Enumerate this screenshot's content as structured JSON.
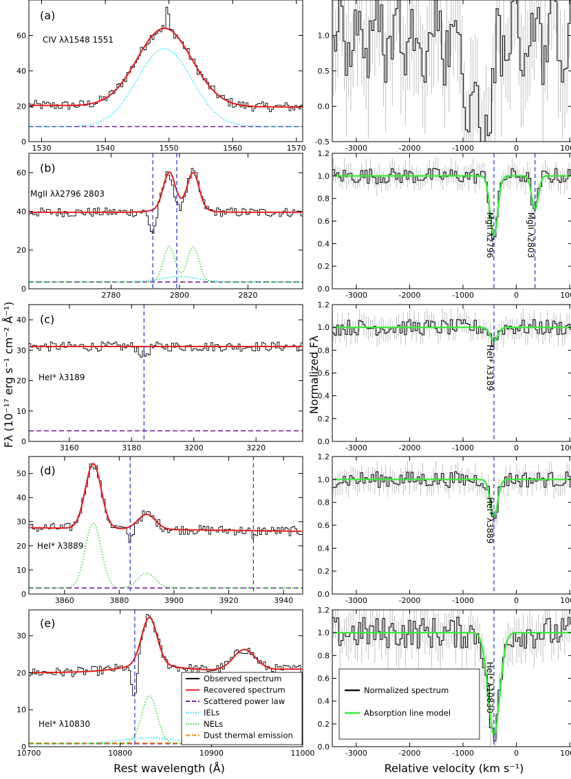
{
  "y_label_left": "Fλ (10⁻¹⁷ erg s⁻¹ cm⁻² Å⁻¹)",
  "y_label_right": "Normalized Fλ",
  "x_label_left": "Rest wavelength (Å)",
  "x_label_right": "Relative velocity (km s⁻¹)",
  "colors": {
    "observed": "#000000",
    "recovered": "#e31a1c",
    "scattered": "#7b1fa2",
    "iels": "#00e5ff",
    "nels": "#22dd22",
    "dust": "#ff8c00",
    "vline": "#1f2fcf",
    "model": "#33ee33",
    "error": "#b0b0b0"
  },
  "legend_left": {
    "items": [
      "Observed spectrum",
      "Recovered spectrum",
      "Scattered power law",
      "IELs",
      "NELs",
      "Dust thermal emission"
    ]
  },
  "legend_right": {
    "items": [
      "Normalized spectrum",
      "Absorption line model"
    ]
  },
  "chart_data": [
    {
      "panel": "(a)",
      "line_label": "CIV λλ1548 1551",
      "type": "line",
      "xlim": [
        1528,
        1571
      ],
      "ylim": [
        0,
        80
      ],
      "xticks": [
        1530,
        1540,
        1550,
        1560,
        1570
      ],
      "yticks": [
        0,
        20,
        40,
        60,
        80
      ],
      "vlines": [],
      "continuum": {
        "start": 20.5,
        "end": 19.5
      },
      "scattered": 8.5,
      "broad": [
        {
          "center": 1549.3,
          "amp": 44,
          "sigma": 4.3
        }
      ],
      "narrow": [],
      "observed_peak": 76
    },
    {
      "panel": "(b)",
      "line_label": "MgII λλ2796 2803",
      "type": "line",
      "xlim": [
        2756,
        2836
      ],
      "ylim": [
        0,
        70
      ],
      "xticks": [
        2780,
        2800,
        2820
      ],
      "yticks": [
        0,
        20,
        40,
        60
      ],
      "vlines": [
        2792.2,
        2799.2
      ],
      "continuum": {
        "start": 39.5,
        "end": 39.5
      },
      "scattered": 3.5,
      "broad": [
        {
          "center": 2800,
          "amp": 2.8,
          "sigma": 5.5
        }
      ],
      "narrow": [
        {
          "center": 2797,
          "amp": 18.5,
          "sigma": 1.7
        },
        {
          "center": 2804,
          "amp": 18.5,
          "sigma": 1.7
        }
      ],
      "absorption": [
        {
          "center": 2792.2,
          "depth": 12,
          "sigma": 0.6
        },
        {
          "center": 2799.2,
          "depth": 8,
          "sigma": 0.6
        }
      ]
    },
    {
      "panel": "(c)",
      "line_label": "HeI* λ3189",
      "type": "line",
      "xlim": [
        3147,
        3235
      ],
      "ylim": [
        0,
        45
      ],
      "xticks": [
        3160,
        3180,
        3200,
        3220
      ],
      "yticks": [
        0,
        10,
        20,
        30,
        40
      ],
      "vlines": [
        3184
      ],
      "continuum": {
        "start": 31.2,
        "end": 31.2
      },
      "scattered": 3.5,
      "broad": [],
      "narrow": [],
      "absorption": [
        {
          "center": 3184,
          "depth": 3,
          "sigma": 0.8
        }
      ]
    },
    {
      "panel": "(d)",
      "line_label": "HeI* λ3889",
      "type": "line",
      "xlim": [
        3847,
        3947
      ],
      "ylim": [
        0,
        57
      ],
      "xticks": [
        3860,
        3880,
        3900,
        3920,
        3940
      ],
      "yticks": [
        0,
        10,
        20,
        30,
        40,
        50
      ],
      "vlines": [
        3884,
        3929
      ],
      "continuum": {
        "start": 27.5,
        "end": 26
      },
      "scattered": 2.5,
      "broad": [],
      "narrow": [
        {
          "center": 3870.5,
          "amp": 27,
          "sigma": 2.9
        },
        {
          "center": 3890,
          "amp": 6.2,
          "sigma": 3.2
        }
      ],
      "absorption": [
        {
          "center": 3884,
          "depth": 6,
          "sigma": 0.6
        },
        {
          "center": 3929,
          "depth": 4,
          "sigma": 0.4
        }
      ]
    },
    {
      "panel": "(e)",
      "line_label": "HeI* λ10830",
      "type": "line",
      "xlim": [
        10700,
        11000
      ],
      "ylim": [
        0,
        37
      ],
      "xticks": [
        10700,
        10800,
        10900,
        11000
      ],
      "yticks": [
        0,
        10,
        20,
        30
      ],
      "vlines": [
        10816
      ],
      "continuum": {
        "start": 20,
        "end": 21
      },
      "scattered": 0.8,
      "broad": [
        {
          "center": 10832,
          "amp": 1.6,
          "sigma": 30
        },
        {
          "center": 10936,
          "amp": 5.5,
          "sigma": 12
        }
      ],
      "narrow": [
        {
          "center": 10832,
          "amp": 13,
          "sigma": 8.5
        }
      ],
      "absorption": [
        {
          "center": 10816,
          "depth": 10,
          "sigma": 2.2
        }
      ]
    }
  ],
  "chart_data_right": [
    {
      "panel": "a",
      "xlim": [
        -3450,
        1050
      ],
      "ylim": [
        -0.5,
        1.5
      ],
      "yticks": [
        -0.5,
        0.0,
        0.5,
        1.0,
        1.5
      ],
      "xticks": [
        -3000,
        -2000,
        -1000,
        0,
        1000
      ],
      "vlines": [],
      "absorbers": [],
      "labels": []
    },
    {
      "panel": "b",
      "xlim": [
        -3450,
        1050
      ],
      "ylim": [
        0,
        1.2
      ],
      "yticks": [
        0.0,
        0.2,
        0.4,
        0.6,
        0.8,
        1.0,
        1.2
      ],
      "xticks": [
        -3000,
        -2000,
        -1000,
        0,
        1000
      ],
      "vlines": [
        -420,
        350
      ],
      "absorbers": [
        {
          "v": -420,
          "depth": 0.55,
          "width": 70
        },
        {
          "v": 350,
          "depth": 0.31,
          "width": 60
        }
      ],
      "labels": [
        "MgII λ2796",
        "MgII λ2803"
      ]
    },
    {
      "panel": "c",
      "xlim": [
        -3450,
        1050
      ],
      "ylim": [
        0,
        1.2
      ],
      "yticks": [
        0.0,
        0.2,
        0.4,
        0.6,
        0.8,
        1.0,
        1.2
      ],
      "xticks": [
        -3000,
        -2000,
        -1000,
        0,
        1000
      ],
      "vlines": [
        -420
      ],
      "absorbers": [
        {
          "v": -420,
          "depth": 0.12,
          "width": 70
        }
      ],
      "labels": [
        "HeI* λ3189"
      ]
    },
    {
      "panel": "d",
      "xlim": [
        -3450,
        1050
      ],
      "ylim": [
        0,
        1.2
      ],
      "yticks": [
        0.0,
        0.2,
        0.4,
        0.6,
        0.8,
        1.0,
        1.2
      ],
      "xticks": [
        -3000,
        -2000,
        -1000,
        0,
        1000
      ],
      "vlines": [
        -420
      ],
      "absorbers": [
        {
          "v": -420,
          "depth": 0.33,
          "width": 70
        }
      ],
      "labels": [
        "HeI* λ3889"
      ]
    },
    {
      "panel": "e",
      "xlim": [
        -3450,
        1050
      ],
      "ylim": [
        0,
        1.2
      ],
      "yticks": [
        0.0,
        0.2,
        0.4,
        0.6,
        0.8,
        1.0,
        1.2
      ],
      "xticks": [
        -3000,
        -2000,
        -1000,
        0,
        1000
      ],
      "vlines": [
        -420
      ],
      "absorbers": [
        {
          "v": -420,
          "depth": 0.9,
          "width": 110
        }
      ],
      "labels": [
        "HeI* λ10830"
      ]
    }
  ]
}
